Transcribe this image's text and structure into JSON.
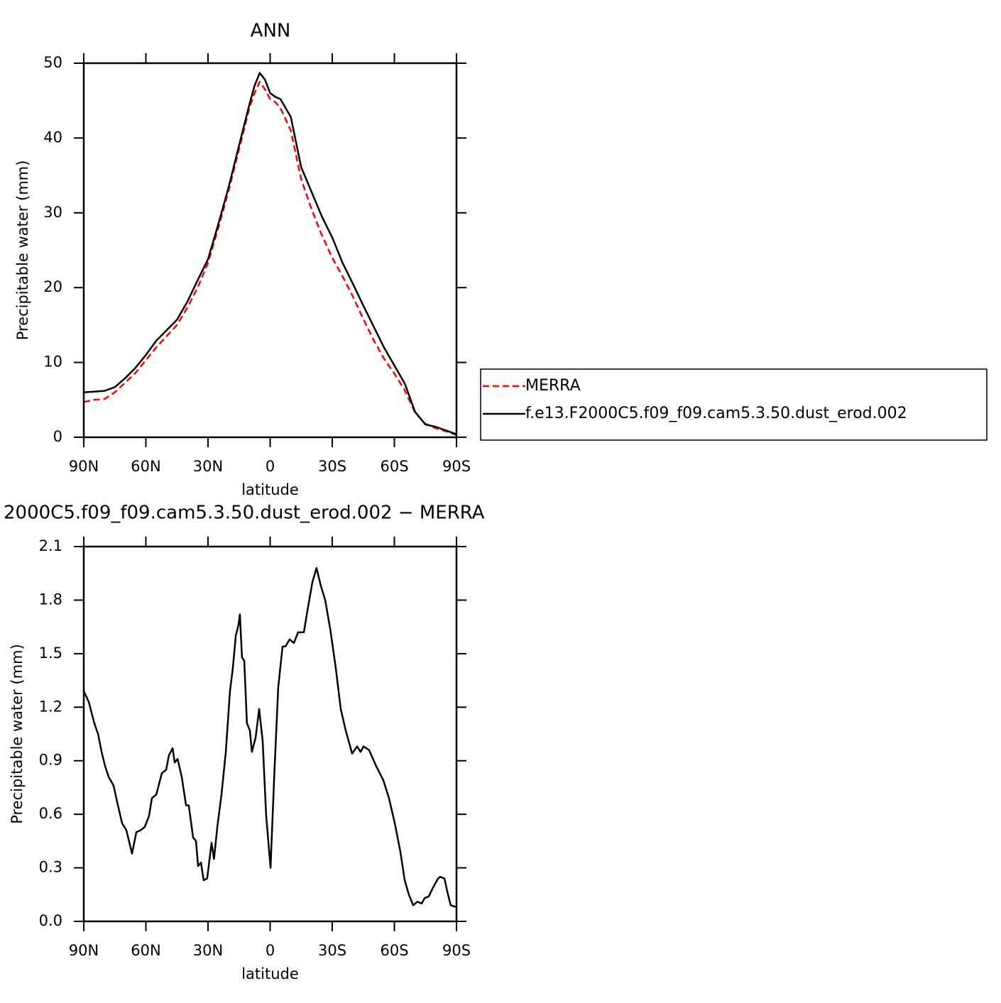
{
  "chart_data": [
    {
      "type": "line",
      "title": "ANN",
      "xlabel": "latitude",
      "ylabel": "Precipitable water (mm)",
      "x": [
        90,
        85,
        80,
        75,
        70,
        65,
        60,
        55,
        50,
        45,
        40,
        35,
        30,
        25,
        20,
        15,
        10,
        7.5,
        5,
        2.5,
        0,
        -2.5,
        -5,
        -10,
        -15,
        -20,
        -25,
        -30,
        -35,
        -40,
        -45,
        -50,
        -55,
        -60,
        -65,
        -70,
        -75,
        -80,
        -85,
        -90
      ],
      "series": [
        {
          "name": "MERRA",
          "color": "#ff0000",
          "dashed": true,
          "values": [
            4.7,
            5.0,
            5.1,
            6.0,
            7.3,
            8.6,
            10.3,
            12.0,
            13.5,
            15.0,
            17.3,
            20.0,
            23.3,
            28.0,
            33.0,
            38.5,
            44.0,
            46.0,
            47.5,
            46.5,
            45.2,
            44.8,
            44.0,
            41.0,
            34.5,
            30.5,
            27.0,
            24.0,
            21.5,
            18.8,
            15.8,
            13.0,
            10.5,
            8.5,
            6.3,
            3.3,
            1.8,
            1.2,
            0.8,
            0.3
          ]
        },
        {
          "name": "f.e13.F2000C5.f09_f09.cam5.3.50.dust_erod.002",
          "color": "#000000",
          "dashed": false,
          "values": [
            6.0,
            6.1,
            6.2,
            6.7,
            7.9,
            9.3,
            11.0,
            12.9,
            14.3,
            15.7,
            18.1,
            21.0,
            23.8,
            28.5,
            33.5,
            39.0,
            44.5,
            47.0,
            48.7,
            47.8,
            46.0,
            45.5,
            45.2,
            42.8,
            36.1,
            32.8,
            29.5,
            26.7,
            23.3,
            20.5,
            17.6,
            14.8,
            12.0,
            9.6,
            7.2,
            3.4,
            1.7,
            1.4,
            0.9,
            0.4
          ]
        }
      ],
      "xlim": [
        90,
        -90
      ],
      "xticks": [
        {
          "value": 90,
          "label": "90N"
        },
        {
          "value": 60,
          "label": "60N"
        },
        {
          "value": 30,
          "label": "30N"
        },
        0,
        {
          "value": -30,
          "label": "30S"
        },
        {
          "value": -60,
          "label": "60S"
        },
        {
          "value": -90,
          "label": "90S"
        }
      ],
      "ylim": [
        0,
        50
      ],
      "yticks": [
        0,
        10,
        20,
        30,
        40,
        50
      ],
      "legend": "right"
    },
    {
      "type": "line",
      "title": "2000C5.f09_f09.cam5.3.50.dust_erod.002 − MERRA",
      "xlabel": "latitude",
      "ylabel": "Precipitable water (mm)",
      "x": [
        90,
        87.6,
        84.9,
        83.1,
        81.4,
        79.7,
        78.0,
        75.6,
        73.9,
        71.5,
        69.4,
        66.7,
        64.6,
        62.6,
        60.5,
        58.5,
        57.1,
        55.0,
        52.3,
        50.2,
        48.9,
        47.1,
        46.1,
        44.7,
        42.7,
        40.6,
        39.3,
        37.2,
        35.8,
        34.8,
        33.4,
        32.1,
        30.4,
        28.3,
        27.1,
        25.5,
        23.5,
        21.4,
        19.4,
        18.0,
        16.6,
        15.3,
        14.6,
        13.6,
        12.5,
        11.2,
        9.8,
        8.8,
        7.0,
        5.3,
        3.6,
        1.9,
        -0.2,
        -1.9,
        -3.9,
        -6.0,
        -7.4,
        -9.4,
        -11.5,
        -13.5,
        -16.3,
        -18.0,
        -20.4,
        -22.4,
        -24.5,
        -26.6,
        -29.0,
        -31.7,
        -34.1,
        -36.5,
        -39.6,
        -42.0,
        -43.7,
        -45.1,
        -47.8,
        -51.2,
        -54.7,
        -57.4,
        -60.2,
        -62.9,
        -65.0,
        -67.0,
        -69.1,
        -71.1,
        -73.2,
        -74.6,
        -76.6,
        -78.7,
        -81.1,
        -82.1,
        -84.2,
        -85.5,
        -87.2,
        -90
      ],
      "series": [
        {
          "color": "#000000",
          "dashed": false,
          "values": [
            1.29,
            1.23,
            1.11,
            1.05,
            0.95,
            0.87,
            0.81,
            0.76,
            0.67,
            0.55,
            0.51,
            0.38,
            0.5,
            0.51,
            0.53,
            0.59,
            0.69,
            0.71,
            0.83,
            0.85,
            0.93,
            0.97,
            0.89,
            0.91,
            0.81,
            0.65,
            0.65,
            0.47,
            0.45,
            0.31,
            0.33,
            0.23,
            0.24,
            0.44,
            0.35,
            0.53,
            0.71,
            0.95,
            1.29,
            1.42,
            1.6,
            1.66,
            1.72,
            1.48,
            1.46,
            1.11,
            1.07,
            0.95,
            1.03,
            1.19,
            1.01,
            0.59,
            0.3,
            0.79,
            1.31,
            1.54,
            1.54,
            1.58,
            1.56,
            1.62,
            1.62,
            1.74,
            1.9,
            1.98,
            1.88,
            1.8,
            1.64,
            1.42,
            1.19,
            1.07,
            0.94,
            0.98,
            0.95,
            0.98,
            0.96,
            0.87,
            0.79,
            0.69,
            0.55,
            0.39,
            0.23,
            0.15,
            0.09,
            0.11,
            0.1,
            0.13,
            0.14,
            0.19,
            0.24,
            0.25,
            0.24,
            0.17,
            0.09,
            0.08
          ]
        }
      ],
      "xlim": [
        90,
        -90
      ],
      "xticks": [
        {
          "value": 90,
          "label": "90N"
        },
        {
          "value": 60,
          "label": "60N"
        },
        {
          "value": 30,
          "label": "30N"
        },
        0,
        {
          "value": -30,
          "label": "30S"
        },
        {
          "value": -60,
          "label": "60S"
        },
        {
          "value": -90,
          "label": "90S"
        }
      ],
      "ylim": [
        0,
        2.1
      ],
      "yticks": [
        {
          "value": 0,
          "label": "0.0"
        },
        0.3,
        0.6,
        0.9,
        1.2,
        1.5,
        1.8,
        2.1
      ]
    }
  ]
}
